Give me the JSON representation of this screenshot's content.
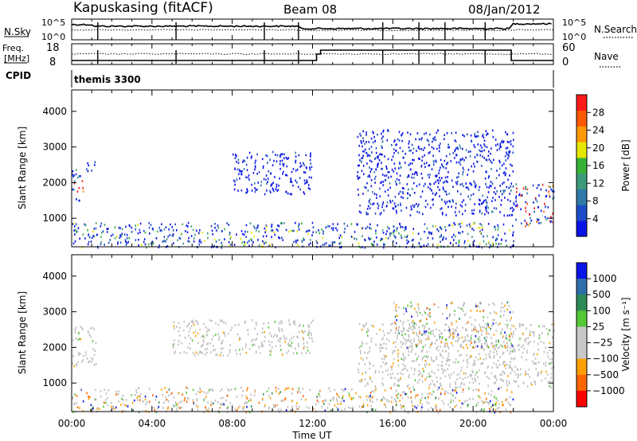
{
  "header": {
    "station": "Kapuskasing (fitACF)",
    "beam": "Beam 08",
    "date": "08/Jan/2012"
  },
  "noise_panel": {
    "left_label": "N.Sky",
    "right_label": "N.Search",
    "yticks": [
      "10^5",
      "10^0"
    ]
  },
  "freq_panel": {
    "left_label_top": "Freq.",
    "left_label_unit": "[MHz]",
    "left_ticks": [
      "18",
      "8"
    ],
    "right_label": "Nave",
    "right_ticks": [
      "60",
      "0"
    ]
  },
  "cpid": {
    "label": "CPID",
    "value": "themis 3300"
  },
  "x_axis": {
    "label": "Time UT",
    "ticks": [
      "00:00",
      "04:00",
      "08:00",
      "12:00",
      "16:00",
      "20:00",
      "00:00"
    ]
  },
  "colors": {
    "power_scale": [
      "#0a14e6",
      "#1e4bc8",
      "#2f7aa8",
      "#3c9a78",
      "#37b237",
      "#e6e600",
      "#ff9900",
      "#ff5a00",
      "#ff1a1a"
    ],
    "velocity_scale": [
      "#0a14e6",
      "#2f6ea8",
      "#2e8b57",
      "#55c837",
      "#c8c8c8",
      "#c8c8c8",
      "#ffa000",
      "#ff6600",
      "#ff0000"
    ],
    "ground_scatter": "#bebebe"
  },
  "chart_data": [
    {
      "type": "heatmap",
      "name": "power",
      "ylabel": "Slant Range [km]",
      "yticks": [
        1000,
        2000,
        3000,
        4000
      ],
      "ylim": [
        200,
        4600
      ],
      "xlim_hours": [
        0,
        24
      ],
      "colorbar": {
        "label": "Power [dB]",
        "ticks": [
          "4",
          "8",
          "12",
          "16",
          "20",
          "24",
          "28"
        ],
        "range": [
          0,
          30
        ]
      },
      "regions": [
        {
          "t0": 0.0,
          "t1": 0.6,
          "r0": 1500,
          "r1": 2400,
          "level": "mixed-high"
        },
        {
          "t0": 0.6,
          "t1": 1.2,
          "r0": 2300,
          "r1": 2600,
          "level": "low"
        },
        {
          "t0": 8.0,
          "t1": 12.0,
          "r0": 1700,
          "r1": 2900,
          "level": "low"
        },
        {
          "t0": 14.2,
          "t1": 22.0,
          "r0": 1100,
          "r1": 3500,
          "level": "low"
        },
        {
          "t0": 22.0,
          "t1": 24.0,
          "r0": 800,
          "r1": 2000,
          "level": "mixed-high"
        },
        {
          "t0": 0.0,
          "t1": 22.0,
          "r0": 200,
          "r1": 900,
          "level": "mixed"
        }
      ]
    },
    {
      "type": "heatmap",
      "name": "velocity",
      "ylabel": "Slant Range [km]",
      "yticks": [
        1000,
        2000,
        3000,
        4000
      ],
      "ylim": [
        200,
        4600
      ],
      "xlim_hours": [
        0,
        24
      ],
      "colorbar": {
        "label": "Velocity [m s⁻¹]",
        "ticks": [
          "1000",
          "500",
          "100",
          "25",
          "−25",
          "−100",
          "−500",
          "−1000"
        ]
      },
      "regions": [
        {
          "t0": 0.0,
          "t1": 1.2,
          "r0": 1500,
          "r1": 2600,
          "level": "ground"
        },
        {
          "t0": 5.0,
          "t1": 12.0,
          "r0": 1800,
          "r1": 2800,
          "level": "ground"
        },
        {
          "t0": 14.2,
          "t1": 24.0,
          "r0": 900,
          "r1": 2700,
          "level": "ground"
        },
        {
          "t0": 16.0,
          "t1": 22.0,
          "r0": 2000,
          "r1": 3300,
          "level": "mixed"
        },
        {
          "t0": 0.0,
          "t1": 22.0,
          "r0": 200,
          "r1": 900,
          "level": "mixed"
        }
      ]
    }
  ]
}
